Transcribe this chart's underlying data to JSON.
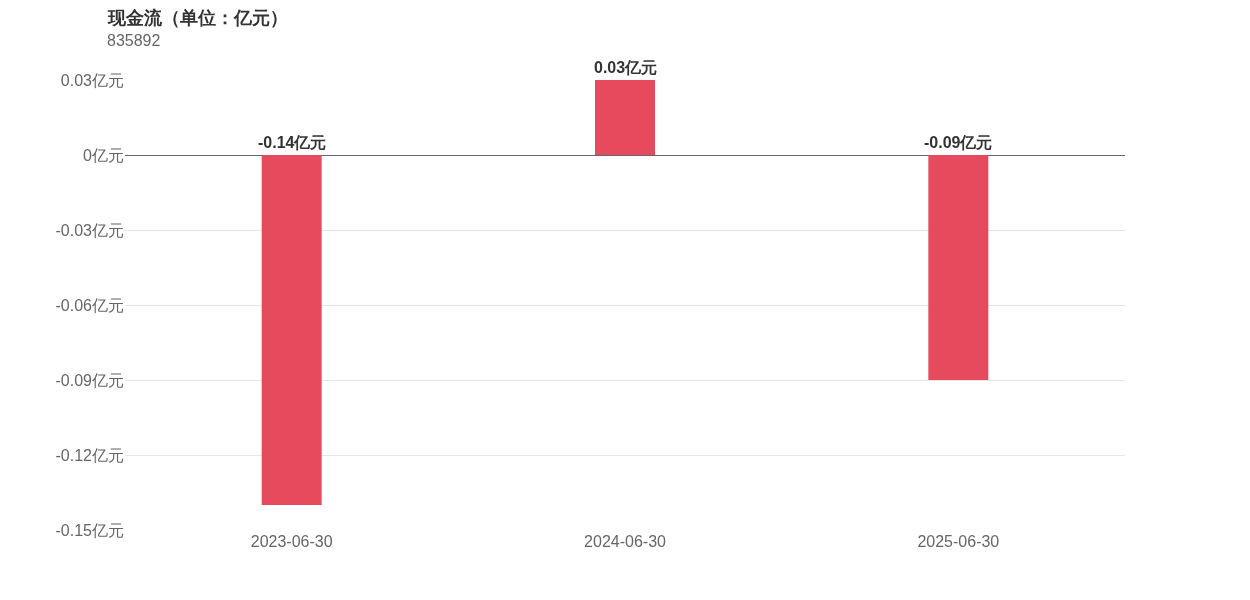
{
  "chart_data": {
    "type": "bar",
    "title": "现金流（单位：亿元）",
    "subtitle": "835892",
    "categories": [
      "2023-06-30",
      "2024-06-30",
      "2025-06-30"
    ],
    "values": [
      -0.14,
      0.03,
      -0.09
    ],
    "value_labels": [
      "-0.14亿元",
      "0.03亿元",
      "-0.09亿元"
    ],
    "color": "#e64b5d",
    "ylim": [
      -0.15,
      0.03
    ],
    "yticks": [
      {
        "value": 0.03,
        "label": "0.03亿元"
      },
      {
        "value": 0,
        "label": "0亿元"
      },
      {
        "value": -0.03,
        "label": "-0.03亿元"
      },
      {
        "value": -0.06,
        "label": "-0.06亿元"
      },
      {
        "value": -0.09,
        "label": "-0.09亿元"
      },
      {
        "value": -0.12,
        "label": "-0.12亿元"
      },
      {
        "value": -0.15,
        "label": "-0.15亿元"
      }
    ],
    "grid": "y"
  }
}
